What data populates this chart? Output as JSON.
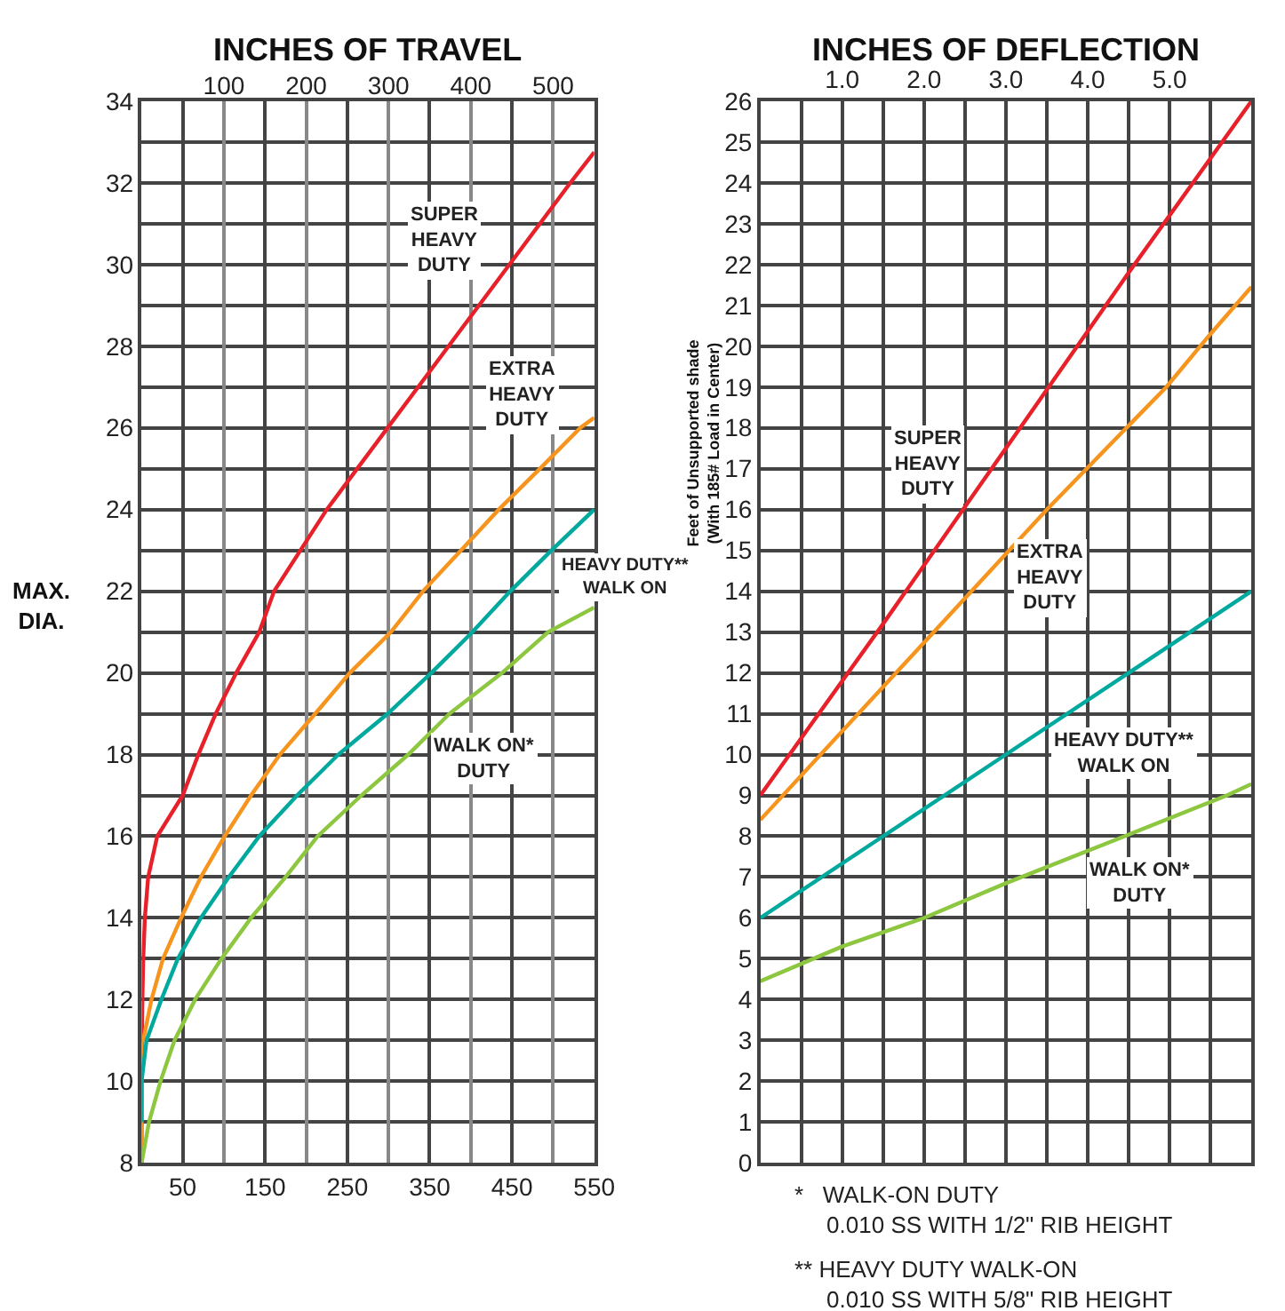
{
  "chart_data": [
    {
      "type": "line",
      "title": "INCHES OF TRAVEL",
      "ylabel": "MAX. DIA.",
      "xlim": [
        0,
        550
      ],
      "xticks": [
        50,
        150,
        250,
        350,
        450,
        550
      ],
      "x2lim": [
        0,
        550
      ],
      "x2ticks": [
        100,
        200,
        300,
        400,
        500
      ],
      "ylim": [
        8,
        34
      ],
      "yticks": [
        8,
        {
          "value": 9,
          "label": null
        },
        10,
        {
          "value": 11,
          "label": null
        },
        12,
        {
          "value": 13,
          "label": null
        },
        14,
        {
          "value": 15,
          "label": null
        },
        16,
        {
          "value": 17,
          "label": null
        },
        18,
        {
          "value": 19,
          "label": null
        },
        20,
        {
          "value": 21,
          "label": null
        },
        22,
        {
          "value": 23,
          "label": null
        },
        24,
        {
          "value": 25,
          "label": null
        },
        26,
        {
          "value": 27,
          "label": null
        },
        28,
        {
          "value": 29,
          "label": null
        },
        30,
        {
          "value": 31,
          "label": null
        },
        32,
        {
          "value": 33,
          "label": null
        },
        34
      ],
      "grid": true,
      "legend": false,
      "marker": "none",
      "line_style": "solid",
      "series": [
        {
          "name": "SUPER\nHEAVY\nDUTY",
          "color": "#e8202a",
          "x": [
            0,
            0,
            1,
            2,
            4,
            8,
            19,
            50,
            69,
            90,
            115,
            143,
            161,
            193,
            225,
            262,
            299,
            336,
            373,
            410,
            447,
            484,
            521,
            550
          ],
          "values": [
            8,
            10,
            12,
            13,
            14,
            15,
            16,
            17,
            18,
            19,
            20,
            21,
            22,
            23,
            24,
            25,
            26,
            27,
            28,
            29,
            30,
            31,
            32,
            32.75
          ]
        },
        {
          "name": "EXTRA\nHEAVY\nDUTY",
          "color": "#f7941d",
          "x": [
            0,
            0,
            2,
            12,
            26,
            48,
            72,
            101,
            133,
            168,
            211,
            253,
            303,
            342,
            388,
            434,
            484,
            533,
            550
          ],
          "values": [
            8,
            11,
            11,
            12,
            13,
            14,
            15,
            16,
            17,
            18,
            19,
            20,
            21,
            22,
            23,
            24,
            25,
            26,
            26.25
          ]
        },
        {
          "name": "HEAVY DUTY**\nWALK ON",
          "color": "#00a99d",
          "x": [
            0,
            0,
            6,
            24,
            44,
            72,
            106,
            143,
            189,
            239,
            299,
            352,
            402,
            448,
            498,
            550
          ],
          "values": [
            9,
            10,
            11,
            12,
            13,
            14,
            15,
            16,
            17,
            18,
            19,
            20,
            21,
            22,
            23,
            24
          ]
        },
        {
          "name": "WALK ON*\nDUTY",
          "color": "#8dc63f",
          "x": [
            0,
            9,
            23,
            40,
            65,
            97,
            133,
            175,
            214,
            267,
            324,
            374,
            438,
            494,
            550
          ],
          "values": [
            8,
            9,
            10,
            11,
            12,
            13,
            14,
            15,
            16,
            17,
            18,
            19,
            20,
            21,
            21.6
          ]
        }
      ]
    },
    {
      "type": "line",
      "title": "INCHES OF DEFLECTION",
      "ylabel": "Feet of Unsupported shade\n(With 185# Load in Center)",
      "xlim": [
        0,
        6
      ],
      "xticks": [
        {
          "value": 0.5,
          "label": null
        },
        {
          "value": 1,
          "label": "1.0"
        },
        {
          "value": 1.5,
          "label": null
        },
        {
          "value": 2,
          "label": "2.0"
        },
        {
          "value": 2.5,
          "label": null
        },
        {
          "value": 3,
          "label": "3.0"
        },
        {
          "value": 3.5,
          "label": null
        },
        {
          "value": 4,
          "label": "4.0"
        },
        {
          "value": 4.5,
          "label": null
        },
        {
          "value": 5,
          "label": "5.0"
        },
        {
          "value": 5.5,
          "label": null
        }
      ],
      "ylim": [
        0,
        26
      ],
      "yticks": [
        0,
        1,
        2,
        3,
        4,
        5,
        6,
        7,
        8,
        9,
        10,
        11,
        12,
        13,
        14,
        15,
        16,
        17,
        18,
        19,
        20,
        21,
        22,
        23,
        24,
        25,
        26
      ],
      "grid": true,
      "legend": false,
      "marker": "none",
      "line_style": "solid",
      "series": [
        {
          "name": "SUPER\nHEAVY\nDUTY",
          "color": "#e8202a",
          "x": [
            0,
            1.5,
            3,
            4.5,
            6
          ],
          "values": [
            9,
            13.2,
            17.5,
            21.8,
            26
          ]
        },
        {
          "name": "EXTRA\nHEAVY\nDUTY",
          "color": "#f7941d",
          "x": [
            0,
            3.5,
            4.96,
            5.5,
            6
          ],
          "values": [
            8.4,
            16,
            19,
            20.3,
            21.45
          ]
        },
        {
          "name": "HEAVY DUTY**\nWALK ON",
          "color": "#00a99d",
          "x": [
            0,
            1.5,
            3,
            4.5,
            6
          ],
          "values": [
            6,
            8,
            10,
            12,
            14
          ]
        },
        {
          "name": "WALK ON*\nDUTY",
          "color": "#8dc63f",
          "x": [
            0,
            1,
            2,
            3,
            4.45,
            5.7,
            6
          ],
          "values": [
            4.45,
            5.3,
            6,
            6.85,
            8,
            9,
            9.28
          ]
        }
      ],
      "annotations": [
        "*   WALK-ON DUTY\n     0.010 SS WITH 1/2\" RIB HEIGHT",
        "** HEAVY DUTY WALK-ON\n     0.010 SS WITH 5/8\" RIB HEIGHT"
      ]
    }
  ]
}
